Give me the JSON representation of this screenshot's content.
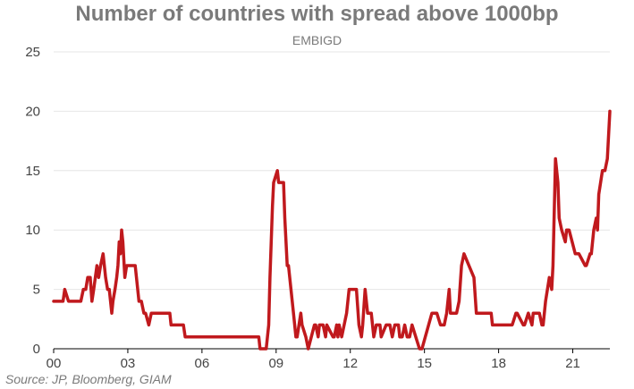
{
  "chart_data": {
    "type": "line",
    "title": "Number of countries with spread above 1000bp",
    "subtitle": "EMBIGD",
    "source": "Source: JP, Bloomberg, GIAM",
    "xlabel": "",
    "ylabel": "",
    "ylim": [
      0,
      25
    ],
    "yticks": [
      0,
      5,
      10,
      15,
      20,
      25
    ],
    "xlim": [
      0,
      22.5
    ],
    "xticks": [
      0,
      3,
      6,
      9,
      12,
      15,
      18,
      21
    ],
    "xtick_labels": [
      "00",
      "03",
      "06",
      "09",
      "12",
      "15",
      "18",
      "21"
    ],
    "grid": true,
    "line_color": "#c0191d",
    "series": [
      {
        "name": "Countries with spread above 1000bp",
        "x": [
          0,
          0.25,
          0.3,
          0.38,
          0.45,
          0.6,
          0.7,
          1.0,
          1.1,
          1.2,
          1.28,
          1.3,
          1.38,
          1.48,
          1.55,
          1.62,
          1.75,
          1.82,
          1.9,
          2.0,
          2.1,
          2.18,
          2.25,
          2.35,
          2.4,
          2.48,
          2.55,
          2.6,
          2.65,
          2.7,
          2.75,
          2.8,
          2.88,
          2.95,
          3.05,
          3.15,
          3.3,
          3.35,
          3.45,
          3.55,
          3.65,
          3.72,
          3.85,
          3.95,
          4.0,
          4.5,
          4.7,
          4.75,
          5.25,
          5.32,
          8.3,
          8.35,
          8.6,
          8.65,
          8.7,
          8.75,
          8.85,
          8.9,
          9.05,
          9.1,
          9.3,
          9.35,
          9.45,
          9.5,
          9.65,
          9.7,
          9.8,
          9.85,
          10.0,
          10.05,
          10.2,
          10.3,
          10.55,
          10.6,
          10.7,
          10.75,
          10.9,
          11.0,
          11.05,
          11.3,
          11.35,
          11.45,
          11.5,
          11.55,
          11.65,
          11.85,
          11.95,
          12.0,
          12.05,
          12.15,
          12.25,
          12.35,
          12.45,
          12.5,
          12.6,
          12.7,
          12.75,
          12.85,
          12.9,
          12.95,
          13.05,
          13.2,
          13.25,
          13.45,
          13.5,
          13.6,
          13.7,
          13.8,
          13.95,
          14.0,
          14.1,
          14.2,
          14.3,
          14.4,
          14.5,
          14.8,
          14.9,
          15.3,
          15.35,
          15.5,
          15.65,
          15.7,
          15.8,
          15.9,
          16.0,
          16.05,
          16.2,
          16.3,
          16.4,
          16.5,
          16.6,
          17.0,
          17.1,
          17.7,
          17.75,
          18.1,
          18.2,
          18.5,
          18.55,
          18.7,
          18.75,
          19.0,
          19.05,
          19.2,
          19.35,
          19.4,
          19.55,
          19.65,
          19.75,
          19.8,
          19.9,
          20.05,
          20.15,
          20.2,
          20.3,
          20.4,
          20.45,
          20.55,
          20.7,
          20.75,
          20.85,
          21.1,
          21.25,
          21.5,
          21.55,
          21.7,
          21.75,
          21.85,
          21.95,
          22.0,
          22.05,
          22.2,
          22.3,
          22.4,
          22.5
        ],
        "values": [
          4,
          4,
          4,
          4,
          5,
          4,
          4,
          4,
          4,
          5,
          5,
          5,
          6,
          6,
          4,
          5,
          7,
          6,
          7,
          8,
          6,
          5,
          5,
          3,
          4,
          5,
          6,
          7,
          9,
          8,
          10,
          9,
          6,
          7,
          7,
          7,
          7,
          6,
          4,
          4,
          3,
          3,
          2,
          3,
          3,
          3,
          3,
          2,
          2,
          1,
          1,
          0,
          0,
          1,
          2,
          6,
          12,
          14,
          15,
          14,
          14,
          11,
          7,
          7,
          4,
          3,
          1,
          1,
          3,
          2,
          1,
          0,
          2,
          2,
          1,
          2,
          2,
          1,
          2,
          1,
          1,
          2,
          1,
          2,
          1,
          3,
          5,
          5,
          5,
          5,
          5,
          2,
          1,
          2,
          5,
          3,
          3,
          3,
          2,
          1,
          2,
          2,
          1,
          2,
          2,
          2,
          1,
          2,
          2,
          1,
          1,
          2,
          1,
          1,
          2,
          0,
          0,
          3,
          3,
          3,
          2,
          2,
          2,
          3,
          5,
          3,
          3,
          3,
          4,
          7,
          8,
          6,
          3,
          3,
          2,
          2,
          2,
          2,
          2,
          3,
          3,
          2,
          2,
          3,
          2,
          3,
          3,
          3,
          2,
          2,
          4,
          6,
          5,
          7,
          16,
          14,
          11,
          10,
          9,
          10,
          10,
          8,
          8,
          7,
          7,
          8,
          8,
          10,
          11,
          10,
          13,
          15,
          15,
          16,
          20
        ]
      }
    ]
  }
}
